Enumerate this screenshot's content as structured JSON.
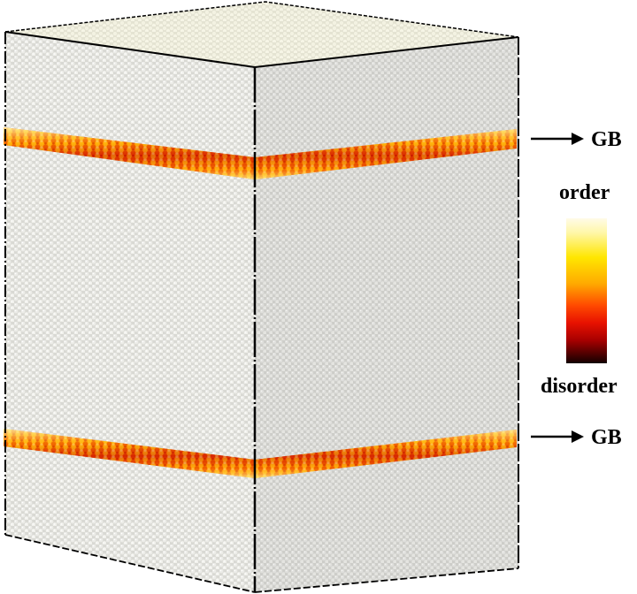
{
  "annotations": {
    "gb_top": "GB",
    "gb_bottom": "GB"
  },
  "legend": {
    "top_label": "order",
    "bottom_label": "disorder",
    "gradient_colors": [
      "#fffbe8",
      "#fff7a8",
      "#ffe600",
      "#ffaa00",
      "#ff4a00",
      "#e81200",
      "#a80000",
      "#4a0000",
      "#120000"
    ]
  },
  "colors": {
    "bulk_atoms": "#e3e3df",
    "bulk_atoms_top_face": "#efeedd",
    "gb_ordered": "#ffd400",
    "gb_mid": "#ff6a00",
    "gb_disordered": "#c41000",
    "edge": "#000000"
  }
}
